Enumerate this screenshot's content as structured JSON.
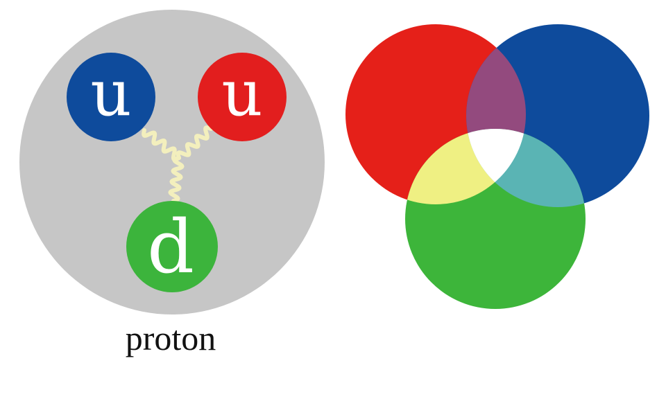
{
  "proton": {
    "caption": "proton",
    "body_color": "#c6c6c6",
    "gluon_color": "#f3efbd",
    "quarks": [
      {
        "label": "u",
        "color": "#0e4b9c"
      },
      {
        "label": "u",
        "color": "#e21e1e"
      },
      {
        "label": "d",
        "color": "#3cb43c"
      }
    ]
  },
  "color_mixing": {
    "primaries": {
      "red": "#e52019",
      "blue": "#0e4b9c",
      "green": "#3db53a"
    },
    "overlaps": {
      "red_blue": "#934a7e",
      "red_green": "#eff083",
      "blue_green": "#5ab4b4",
      "all": "#ffffff"
    }
  }
}
